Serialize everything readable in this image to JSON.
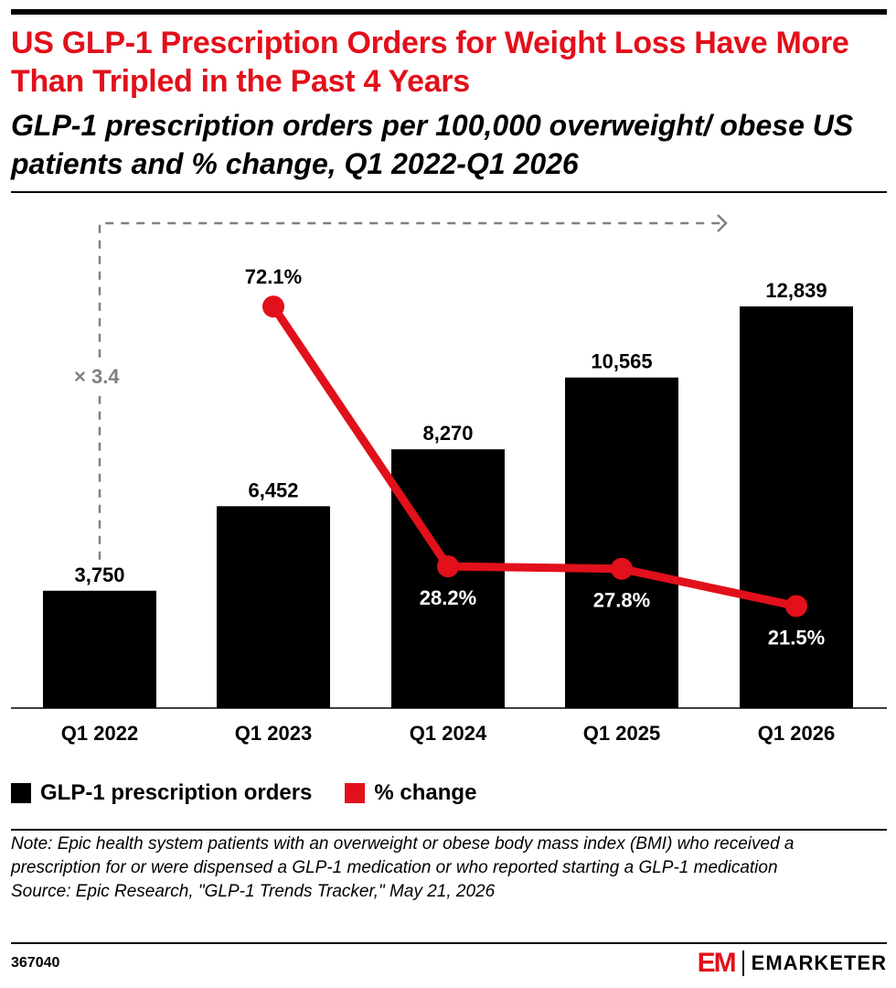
{
  "header": {
    "title": "US GLP-1 Prescription Orders for Weight Loss Have More Than Tripled in the Past 4 Years",
    "subtitle": "GLP-1 prescription orders per 100,000 overweight/ obese US patients and % change, Q1 2022-Q1 2026"
  },
  "chart_data": {
    "type": "bar",
    "categories": [
      "Q1 2022",
      "Q1 2023",
      "Q1 2024",
      "Q1 2025",
      "Q1 2026"
    ],
    "series": [
      {
        "name": "GLP-1 prescription orders",
        "type": "bar",
        "values": [
          3750,
          6452,
          8270,
          10565,
          12839
        ],
        "labels": [
          "3,750",
          "6,452",
          "8,270",
          "10,565",
          "12,839"
        ],
        "color": "#000000"
      },
      {
        "name": "% change",
        "type": "line",
        "values": [
          null,
          72.1,
          28.2,
          27.8,
          21.5
        ],
        "labels": [
          "",
          "72.1%",
          "28.2%",
          "27.8%",
          "21.5%"
        ],
        "color": "#e2101b"
      }
    ],
    "annotation": "× 3.4",
    "ylim": [
      0,
      15000
    ],
    "pct_ylim": [
      0,
      100
    ],
    "grid": false,
    "legend_position": "bottom-left"
  },
  "legend": {
    "orders_label": "GLP-1 prescription orders",
    "pct_label": "% change"
  },
  "footer": {
    "note": "Note: Epic health system patients with an overweight or obese body mass index (BMI) who received a prescription for or were dispensed a GLP-1 medication or who reported starting a GLP-1 medication",
    "source": "Source: Epic Research, \"GLP-1 Trends Tracker,\" May 21, 2026",
    "chart_id": "367040",
    "brand_mark": "EM",
    "brand_name": "EMARKETER"
  },
  "colors": {
    "accent": "#e2101b",
    "bar": "#000000",
    "annotation": "#808080"
  }
}
